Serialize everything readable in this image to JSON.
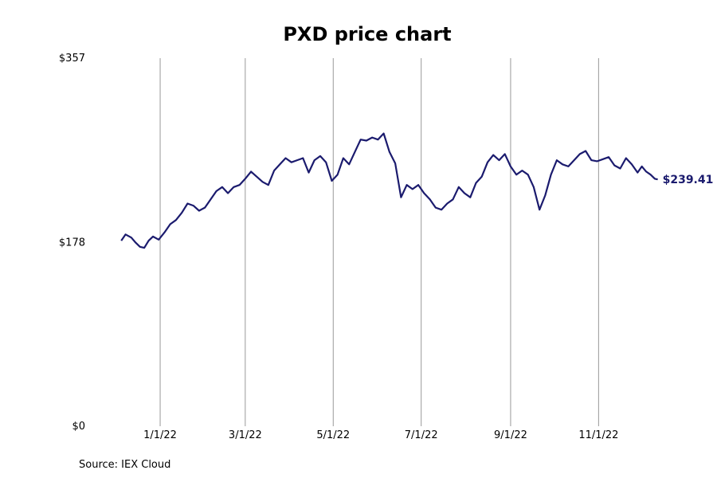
{
  "chart_data": {
    "type": "line",
    "title": "PXD price chart",
    "xlabel": "",
    "ylabel": "",
    "source": "Source: IEX Cloud",
    "y_ticks": [
      {
        "value": 357,
        "label": "$357"
      },
      {
        "value": 178,
        "label": "$178"
      },
      {
        "value": 0,
        "label": "$0"
      }
    ],
    "ylim": [
      0,
      357
    ],
    "x_ticks": [
      "1/1/22",
      "3/1/22",
      "5/1/22",
      "7/1/22",
      "9/1/22",
      "11/1/22"
    ],
    "xlim": [
      "2021-11-20",
      "2022-12-31"
    ],
    "grid": "vertical-at-x-ticks",
    "line_color": "#1b1b6e",
    "last_value_label": "$239.41",
    "series": [
      {
        "values": [
          [
            "2021-12-05",
            180
          ],
          [
            "2021-12-08",
            186
          ],
          [
            "2021-12-12",
            183
          ],
          [
            "2021-12-15",
            178
          ],
          [
            "2021-12-18",
            174
          ],
          [
            "2021-12-21",
            173
          ],
          [
            "2021-12-24",
            180
          ],
          [
            "2021-12-27",
            184
          ],
          [
            "2021-12-31",
            181
          ],
          [
            "2022-01-04",
            188
          ],
          [
            "2022-01-08",
            196
          ],
          [
            "2022-01-12",
            200
          ],
          [
            "2022-01-16",
            207
          ],
          [
            "2022-01-20",
            216
          ],
          [
            "2022-01-24",
            214
          ],
          [
            "2022-01-28",
            209
          ],
          [
            "2022-02-01",
            212
          ],
          [
            "2022-02-05",
            220
          ],
          [
            "2022-02-09",
            228
          ],
          [
            "2022-02-13",
            232
          ],
          [
            "2022-02-17",
            226
          ],
          [
            "2022-02-21",
            232
          ],
          [
            "2022-02-25",
            234
          ],
          [
            "2022-03-01",
            240
          ],
          [
            "2022-03-05",
            247
          ],
          [
            "2022-03-09",
            242
          ],
          [
            "2022-03-13",
            237
          ],
          [
            "2022-03-17",
            234
          ],
          [
            "2022-03-21",
            248
          ],
          [
            "2022-03-25",
            254
          ],
          [
            "2022-03-29",
            260
          ],
          [
            "2022-04-02",
            256
          ],
          [
            "2022-04-06",
            258
          ],
          [
            "2022-04-10",
            260
          ],
          [
            "2022-04-14",
            246
          ],
          [
            "2022-04-18",
            258
          ],
          [
            "2022-04-22",
            262
          ],
          [
            "2022-04-26",
            256
          ],
          [
            "2022-04-30",
            238
          ],
          [
            "2022-05-04",
            244
          ],
          [
            "2022-05-08",
            260
          ],
          [
            "2022-05-12",
            254
          ],
          [
            "2022-05-16",
            266
          ],
          [
            "2022-05-20",
            278
          ],
          [
            "2022-05-24",
            277
          ],
          [
            "2022-05-28",
            280
          ],
          [
            "2022-06-01",
            278
          ],
          [
            "2022-06-05",
            284
          ],
          [
            "2022-06-09",
            266
          ],
          [
            "2022-06-13",
            255
          ],
          [
            "2022-06-17",
            222
          ],
          [
            "2022-06-21",
            234
          ],
          [
            "2022-06-25",
            230
          ],
          [
            "2022-06-29",
            234
          ],
          [
            "2022-07-03",
            226
          ],
          [
            "2022-07-07",
            220
          ],
          [
            "2022-07-11",
            212
          ],
          [
            "2022-07-15",
            210
          ],
          [
            "2022-07-19",
            216
          ],
          [
            "2022-07-23",
            220
          ],
          [
            "2022-07-27",
            232
          ],
          [
            "2022-07-31",
            226
          ],
          [
            "2022-08-04",
            222
          ],
          [
            "2022-08-08",
            236
          ],
          [
            "2022-08-12",
            242
          ],
          [
            "2022-08-16",
            256
          ],
          [
            "2022-08-20",
            263
          ],
          [
            "2022-08-24",
            258
          ],
          [
            "2022-08-28",
            264
          ],
          [
            "2022-09-01",
            252
          ],
          [
            "2022-09-05",
            244
          ],
          [
            "2022-09-09",
            248
          ],
          [
            "2022-09-13",
            244
          ],
          [
            "2022-09-17",
            232
          ],
          [
            "2022-09-21",
            210
          ],
          [
            "2022-09-25",
            224
          ],
          [
            "2022-09-29",
            244
          ],
          [
            "2022-10-03",
            258
          ],
          [
            "2022-10-07",
            254
          ],
          [
            "2022-10-11",
            252
          ],
          [
            "2022-10-15",
            258
          ],
          [
            "2022-10-19",
            264
          ],
          [
            "2022-10-23",
            267
          ],
          [
            "2022-10-27",
            258
          ],
          [
            "2022-10-31",
            257
          ],
          [
            "2022-11-04",
            259
          ],
          [
            "2022-11-08",
            261
          ],
          [
            "2022-11-12",
            253
          ],
          [
            "2022-11-16",
            250
          ],
          [
            "2022-11-20",
            260
          ],
          [
            "2022-11-24",
            254
          ],
          [
            "2022-11-28",
            246
          ],
          [
            "2022-12-01",
            252
          ],
          [
            "2022-12-04",
            247
          ],
          [
            "2022-12-07",
            244
          ],
          [
            "2022-12-10",
            240
          ],
          [
            "2022-12-12",
            239.41
          ]
        ]
      }
    ]
  }
}
